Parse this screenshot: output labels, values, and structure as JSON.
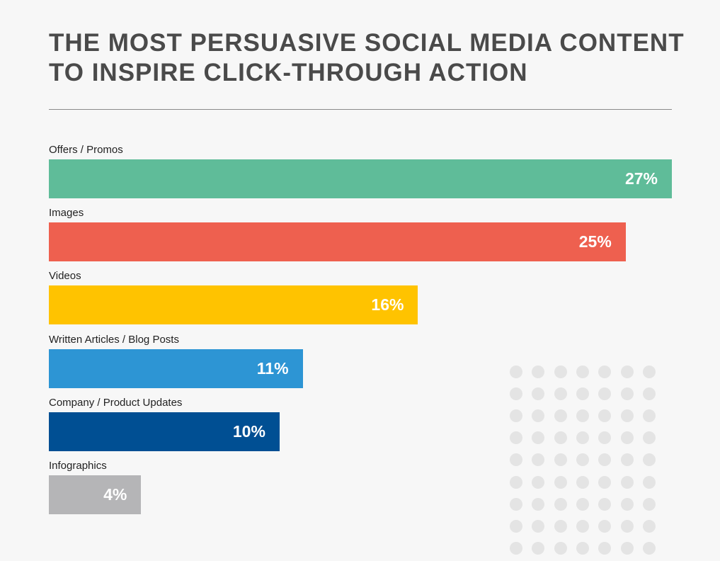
{
  "title": {
    "line1": "THE MOST PERSUASIVE SOCIAL MEDIA CONTENT",
    "line2": "TO INSPIRE CLICK-THROUGH ACTION"
  },
  "chart_data": {
    "type": "bar",
    "orientation": "horizontal",
    "title": "THE MOST PERSUASIVE SOCIAL MEDIA CONTENT TO INSPIRE CLICK-THROUGH ACTION",
    "categories": [
      "Offers / Promos",
      "Images",
      "Videos",
      "Written Articles / Blog Posts",
      "Company / Product Updates",
      "Infographics"
    ],
    "values": [
      27,
      25,
      16,
      11,
      10,
      4
    ],
    "value_labels": [
      "27%",
      "25%",
      "16%",
      "11%",
      "10%",
      "4%"
    ],
    "colors": [
      "#5fbc99",
      "#ee604f",
      "#ffc300",
      "#2d95d4",
      "#004f93",
      "#b5b5b7"
    ],
    "xlim": [
      0,
      27
    ],
    "xlabel": "",
    "ylabel": ""
  },
  "decoration": {
    "dot_color": "#e4e4e4",
    "rows": 9,
    "cols": 7
  }
}
